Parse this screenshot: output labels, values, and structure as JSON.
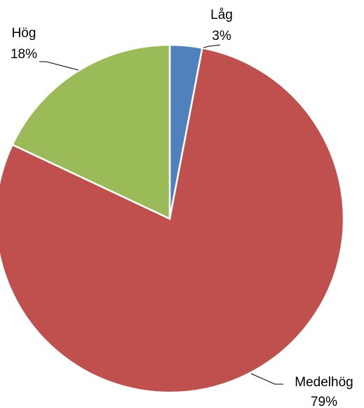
{
  "chart_data": {
    "type": "pie",
    "categories": [
      "Låg",
      "Medelhög",
      "Hög"
    ],
    "values": [
      3,
      79,
      18
    ],
    "value_labels": [
      "3%",
      "79%",
      "18%"
    ],
    "colors": [
      "#4f81bd",
      "#c0504d",
      "#9bbb59"
    ]
  }
}
